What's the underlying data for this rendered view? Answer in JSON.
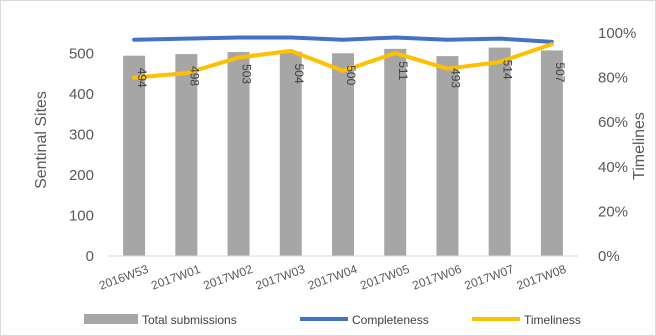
{
  "chart_data": {
    "type": "bar",
    "categories": [
      "2016W53",
      "2017W01",
      "2017W02",
      "2017W03",
      "2017W04",
      "2017W05",
      "2017W06",
      "2017W07",
      "2017W08"
    ],
    "series": [
      {
        "name": "Total submissions",
        "type": "bar",
        "axis": "left",
        "values": [
          494,
          498,
          503,
          504,
          500,
          511,
          493,
          514,
          507
        ],
        "data_labels": [
          "494",
          "498",
          "503",
          "504",
          "500",
          "511",
          "493",
          "514",
          "507"
        ],
        "color": "#a6a6a6"
      },
      {
        "name": "Completeness",
        "type": "line",
        "axis": "right",
        "values": [
          0.97,
          0.975,
          0.98,
          0.98,
          0.97,
          0.98,
          0.97,
          0.975,
          0.96
        ],
        "color": "#4472c4"
      },
      {
        "name": "Timeliness",
        "type": "line",
        "axis": "right",
        "values": [
          0.8,
          0.82,
          0.89,
          0.92,
          0.83,
          0.91,
          0.84,
          0.87,
          0.95
        ],
        "color": "#ffc000"
      }
    ],
    "y_left": {
      "label": "Sentinal Sites",
      "range": [
        0,
        550
      ],
      "ticks": [
        0,
        100,
        200,
        300,
        400,
        500
      ],
      "tick_labels": [
        "0",
        "100",
        "200",
        "300",
        "400",
        "500"
      ]
    },
    "y_right": {
      "label": "Timelines",
      "range": [
        0,
        1.0
      ],
      "ticks": [
        0,
        0.2,
        0.4,
        0.6,
        0.8,
        1.0
      ],
      "tick_labels": [
        "0%",
        "20%",
        "40%",
        "60%",
        "80%",
        "100%"
      ]
    },
    "grid": false,
    "legend_position": "bottom"
  }
}
